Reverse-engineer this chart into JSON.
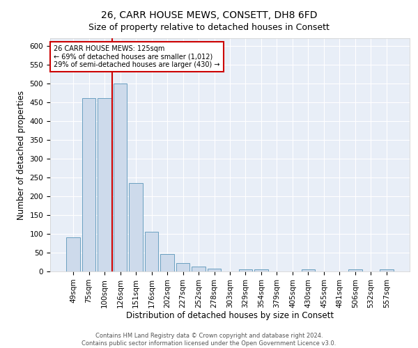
{
  "title": "26, CARR HOUSE MEWS, CONSETT, DH8 6FD",
  "subtitle": "Size of property relative to detached houses in Consett",
  "xlabel": "Distribution of detached houses by size in Consett",
  "ylabel": "Number of detached properties",
  "bar_labels": [
    "49sqm",
    "75sqm",
    "100sqm",
    "126sqm",
    "151sqm",
    "176sqm",
    "202sqm",
    "227sqm",
    "252sqm",
    "278sqm",
    "303sqm",
    "329sqm",
    "354sqm",
    "379sqm",
    "405sqm",
    "430sqm",
    "455sqm",
    "481sqm",
    "506sqm",
    "532sqm",
    "557sqm"
  ],
  "bar_values": [
    90,
    460,
    460,
    500,
    235,
    105,
    47,
    22,
    13,
    8,
    0,
    5,
    5,
    0,
    0,
    5,
    0,
    0,
    5,
    0,
    5
  ],
  "bar_color": "#cddaeb",
  "bar_edge_color": "#6a9fc0",
  "highlight_line_color": "#cc0000",
  "annotation_text": "26 CARR HOUSE MEWS: 125sqm\n← 69% of detached houses are smaller (1,012)\n29% of semi-detached houses are larger (430) →",
  "annotation_box_color": "#ffffff",
  "annotation_box_edge_color": "#cc0000",
  "ylim": [
    0,
    620
  ],
  "yticks": [
    0,
    50,
    100,
    150,
    200,
    250,
    300,
    350,
    400,
    450,
    500,
    550,
    600
  ],
  "title_fontsize": 10,
  "subtitle_fontsize": 9,
  "xlabel_fontsize": 8.5,
  "ylabel_fontsize": 8.5,
  "tick_fontsize": 7.5,
  "annotation_fontsize": 7,
  "footer_text": "Contains HM Land Registry data © Crown copyright and database right 2024.\nContains public sector information licensed under the Open Government Licence v3.0.",
  "plot_bg_color": "#e8eef7"
}
